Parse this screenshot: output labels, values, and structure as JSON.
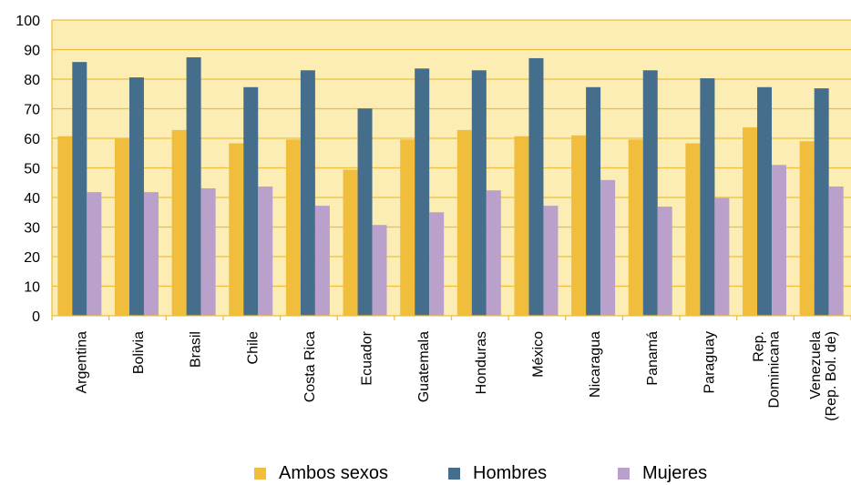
{
  "chart_data": {
    "type": "bar",
    "title": "",
    "xlabel": "",
    "ylabel": "",
    "ylim": [
      0,
      100
    ],
    "yticks": [
      0,
      10,
      20,
      30,
      40,
      50,
      60,
      70,
      80,
      90,
      100
    ],
    "grid": true,
    "legend_position": "bottom",
    "background_color": "#FCEDB5",
    "categories": [
      [
        "Argentina"
      ],
      [
        "Bolivia"
      ],
      [
        "Brasil"
      ],
      [
        "Chile"
      ],
      [
        "Costa Rica"
      ],
      [
        "Ecuador"
      ],
      [
        "Guatemala"
      ],
      [
        "Honduras"
      ],
      [
        "México"
      ],
      [
        "Nicaragua"
      ],
      [
        "Panamá"
      ],
      [
        "Paraguay"
      ],
      [
        "Rep.",
        "Dominicana"
      ],
      [
        "Venezuela",
        "(Rep. Bol. de)"
      ]
    ],
    "series": [
      {
        "name": "Ambos sexos",
        "color": "#F0BE3C",
        "values": [
          60.7,
          60.0,
          62.8,
          58.3,
          59.6,
          49.4,
          59.6,
          62.8,
          60.7,
          61.0,
          59.6,
          58.3,
          63.7,
          59.0
        ]
      },
      {
        "name": "Hombres",
        "color": "#456E8C",
        "values": [
          85.8,
          80.6,
          87.4,
          77.3,
          83.0,
          70.1,
          83.6,
          83.0,
          87.1,
          77.3,
          83.0,
          80.3,
          77.3,
          76.9
        ]
      },
      {
        "name": "Mujeres",
        "color": "#B9A1CB",
        "values": [
          41.8,
          41.8,
          43.1,
          43.7,
          37.2,
          30.7,
          35.0,
          42.4,
          37.2,
          45.9,
          36.9,
          39.8,
          51.0,
          43.7
        ]
      }
    ]
  }
}
